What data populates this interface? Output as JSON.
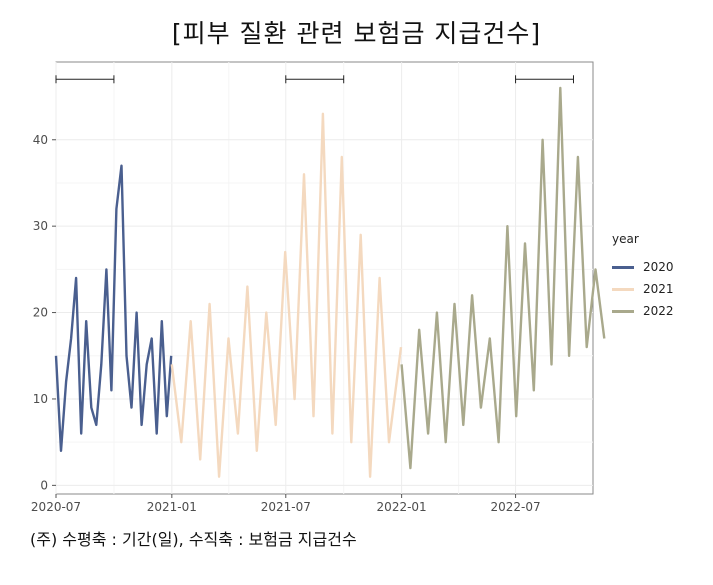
{
  "caption": "(주) 수평축 : 기간(일), 수직축 : 보험금 지급건수",
  "chart_data": {
    "type": "line",
    "title": "[피부 질환 관련 보험금 지급건수]",
    "xlabel": "",
    "ylabel": "",
    "x_range": [
      "2020-07",
      "2022-11"
    ],
    "ylim": [
      -1,
      49
    ],
    "x_ticks": [
      "2020-07",
      "2021-01",
      "2021-07",
      "2022-01",
      "2022-07"
    ],
    "y_ticks": [
      0,
      10,
      20,
      30,
      40
    ],
    "grid": true,
    "legend": {
      "title": "year",
      "position": "right"
    },
    "brackets": [
      {
        "from": "2020-07",
        "to": "2020-10",
        "y": 47
      },
      {
        "from": "2021-07",
        "to": "2021-10",
        "y": 47
      },
      {
        "from": "2022-07",
        "to": "2022-10",
        "y": 47
      }
    ],
    "series": [
      {
        "name": "2020",
        "color": "#4a5f8f",
        "x": [
          "2020-07-01",
          "2020-07-09",
          "2020-07-17",
          "2020-07-25",
          "2020-08-02",
          "2020-08-10",
          "2020-08-18",
          "2020-08-26",
          "2020-09-03",
          "2020-09-11",
          "2020-09-19",
          "2020-09-27",
          "2020-10-05",
          "2020-10-13",
          "2020-10-21",
          "2020-10-29",
          "2020-11-06",
          "2020-11-14",
          "2020-11-22",
          "2020-11-30",
          "2020-12-08",
          "2020-12-16",
          "2020-12-24",
          "2020-12-31"
        ],
        "values": [
          15,
          4,
          12,
          17,
          24,
          6,
          19,
          9,
          7,
          14,
          25,
          11,
          32,
          37,
          15,
          9,
          20,
          7,
          14,
          17,
          6,
          19,
          8,
          15
        ]
      },
      {
        "name": "2021",
        "color": "#f4d9bf",
        "x": [
          "2021-01-01",
          "2021-01-16",
          "2021-01-31",
          "2021-02-15",
          "2021-03-02",
          "2021-03-17",
          "2021-04-01",
          "2021-04-16",
          "2021-05-01",
          "2021-05-16",
          "2021-05-31",
          "2021-06-15",
          "2021-06-30",
          "2021-07-15",
          "2021-07-30",
          "2021-08-14",
          "2021-08-29",
          "2021-09-13",
          "2021-09-28",
          "2021-10-13",
          "2021-10-28",
          "2021-11-12",
          "2021-11-27",
          "2021-12-12",
          "2021-12-31"
        ],
        "values": [
          14,
          5,
          19,
          3,
          21,
          1,
          17,
          6,
          23,
          4,
          20,
          7,
          27,
          10,
          36,
          8,
          43,
          6,
          38,
          5,
          29,
          1,
          24,
          5,
          16
        ]
      },
      {
        "name": "2022",
        "color": "#a9a98c",
        "x": [
          "2022-01-01",
          "2022-01-15",
          "2022-01-29",
          "2022-02-12",
          "2022-02-26",
          "2022-03-12",
          "2022-03-26",
          "2022-04-09",
          "2022-04-23",
          "2022-05-07",
          "2022-05-21",
          "2022-06-04",
          "2022-06-18",
          "2022-07-02",
          "2022-07-16",
          "2022-07-30",
          "2022-08-13",
          "2022-08-27",
          "2022-09-10",
          "2022-09-24",
          "2022-10-08",
          "2022-10-22",
          "2022-11-05",
          "2022-11-19"
        ],
        "values": [
          14,
          2,
          18,
          6,
          20,
          5,
          21,
          7,
          22,
          9,
          17,
          5,
          30,
          8,
          28,
          11,
          40,
          14,
          46,
          15,
          38,
          16,
          25,
          17
        ]
      }
    ]
  }
}
